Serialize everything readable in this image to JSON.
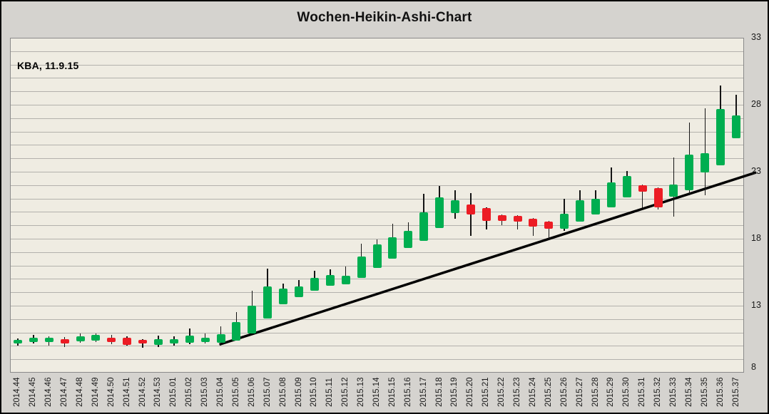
{
  "title": "Wochen-Heikin-Ashi-Chart",
  "annotation": "KBA, 11.9.15",
  "chart_data": {
    "type": "candlestick",
    "style": "heikin-ashi",
    "title": "Wochen-Heikin-Ashi-Chart",
    "grid": "horizontal-only",
    "legend_position": "none",
    "y_axis": {
      "side": "right",
      "min": 8,
      "max": 33,
      "grid_step": 1,
      "label_step": 5,
      "tick_labels": [
        "33",
        "28",
        "23",
        "18",
        "13",
        "8"
      ]
    },
    "x_axis": {
      "label_rotation_deg": 90,
      "categories": [
        "2014.44",
        "2014.45",
        "2014.46",
        "2014.47",
        "2014.48",
        "2014.49",
        "2014.50",
        "2014.51",
        "2014.52",
        "2014.53",
        "2015.01",
        "2015.02",
        "2015.03",
        "2015.04",
        "2015.05",
        "2015.06",
        "2015.07",
        "2015.08",
        "2015.09",
        "2015.10",
        "2015.11",
        "2015.12",
        "2015.13",
        "2015.14",
        "2015.15",
        "2015.16",
        "2015.17",
        "2015.18",
        "2015.19",
        "2015.20",
        "2015.21",
        "2015.22",
        "2015.23",
        "2015.24",
        "2015.25",
        "2015.26",
        "2015.27",
        "2015.28",
        "2015.29",
        "2015.30",
        "2015.31",
        "2015.32",
        "2015.33",
        "2015.34",
        "2015.35",
        "2015.36",
        "2015.37"
      ]
    },
    "candles": [
      {
        "week": "2014.44",
        "dir": "up",
        "open": 10.2,
        "close": 10.45,
        "high": 10.55,
        "low": 10.0
      },
      {
        "week": "2014.45",
        "dir": "up",
        "open": 10.3,
        "close": 10.6,
        "high": 10.8,
        "low": 10.2
      },
      {
        "week": "2014.46",
        "dir": "up",
        "open": 10.3,
        "close": 10.6,
        "high": 10.7,
        "low": 10.0
      },
      {
        "week": "2014.47",
        "dir": "down",
        "open": 10.5,
        "close": 10.2,
        "high": 10.65,
        "low": 9.9
      },
      {
        "week": "2014.48",
        "dir": "up",
        "open": 10.35,
        "close": 10.7,
        "high": 10.9,
        "low": 10.25
      },
      {
        "week": "2014.49",
        "dir": "up",
        "open": 10.4,
        "close": 10.8,
        "high": 10.9,
        "low": 10.3
      },
      {
        "week": "2014.50",
        "dir": "down",
        "open": 10.6,
        "close": 10.3,
        "high": 10.8,
        "low": 10.15
      },
      {
        "week": "2014.51",
        "dir": "down",
        "open": 10.6,
        "close": 10.1,
        "high": 10.7,
        "low": 10.0
      },
      {
        "week": "2014.52",
        "dir": "down",
        "open": 10.45,
        "close": 10.2,
        "high": 10.5,
        "low": 9.85
      },
      {
        "week": "2014.53",
        "dir": "up",
        "open": 10.1,
        "close": 10.5,
        "high": 10.75,
        "low": 9.9
      },
      {
        "week": "2015.01",
        "dir": "up",
        "open": 10.2,
        "close": 10.5,
        "high": 10.7,
        "low": 10.0
      },
      {
        "week": "2015.02",
        "dir": "up",
        "open": 10.25,
        "close": 10.75,
        "high": 11.3,
        "low": 10.15
      },
      {
        "week": "2015.03",
        "dir": "up",
        "open": 10.3,
        "close": 10.6,
        "high": 10.9,
        "low": 10.2
      },
      {
        "week": "2015.04",
        "dir": "up",
        "open": 10.25,
        "close": 10.85,
        "high": 11.45,
        "low": 10.15
      },
      {
        "week": "2015.05",
        "dir": "up",
        "open": 10.4,
        "close": 11.8,
        "high": 12.5,
        "low": 10.4
      },
      {
        "week": "2015.06",
        "dir": "up",
        "open": 10.95,
        "close": 13.0,
        "high": 14.1,
        "low": 10.95
      },
      {
        "week": "2015.07",
        "dir": "up",
        "open": 12.05,
        "close": 14.45,
        "high": 15.75,
        "low": 12.05
      },
      {
        "week": "2015.08",
        "dir": "up",
        "open": 13.1,
        "close": 14.3,
        "high": 14.65,
        "low": 13.1
      },
      {
        "week": "2015.09",
        "dir": "up",
        "open": 13.65,
        "close": 14.45,
        "high": 14.9,
        "low": 13.65
      },
      {
        "week": "2015.10",
        "dir": "up",
        "open": 14.1,
        "close": 15.05,
        "high": 15.6,
        "low": 14.1
      },
      {
        "week": "2015.11",
        "dir": "up",
        "open": 14.5,
        "close": 15.3,
        "high": 15.7,
        "low": 14.5
      },
      {
        "week": "2015.12",
        "dir": "up",
        "open": 14.6,
        "close": 15.25,
        "high": 15.95,
        "low": 14.6
      },
      {
        "week": "2015.13",
        "dir": "up",
        "open": 15.05,
        "close": 16.65,
        "high": 17.65,
        "low": 15.05
      },
      {
        "week": "2015.14",
        "dir": "up",
        "open": 15.8,
        "close": 17.55,
        "high": 17.95,
        "low": 15.8
      },
      {
        "week": "2015.15",
        "dir": "up",
        "open": 16.5,
        "close": 18.1,
        "high": 19.1,
        "low": 16.5
      },
      {
        "week": "2015.16",
        "dir": "up",
        "open": 17.3,
        "close": 18.6,
        "high": 19.2,
        "low": 17.3
      },
      {
        "week": "2015.17",
        "dir": "up",
        "open": 17.85,
        "close": 19.95,
        "high": 21.35,
        "low": 17.85
      },
      {
        "week": "2015.18",
        "dir": "up",
        "open": 18.8,
        "close": 21.1,
        "high": 21.95,
        "low": 18.8
      },
      {
        "week": "2015.19",
        "dir": "up",
        "open": 19.9,
        "close": 20.85,
        "high": 21.6,
        "low": 19.5
      },
      {
        "week": "2015.20",
        "dir": "down",
        "open": 20.55,
        "close": 19.8,
        "high": 21.4,
        "low": 18.2
      },
      {
        "week": "2015.21",
        "dir": "down",
        "open": 20.3,
        "close": 19.35,
        "high": 20.35,
        "low": 18.7
      },
      {
        "week": "2015.22",
        "dir": "down",
        "open": 19.75,
        "close": 19.35,
        "high": 19.8,
        "low": 19.0
      },
      {
        "week": "2015.23",
        "dir": "down",
        "open": 19.7,
        "close": 19.25,
        "high": 19.75,
        "low": 18.7
      },
      {
        "week": "2015.24",
        "dir": "down",
        "open": 19.5,
        "close": 18.9,
        "high": 19.55,
        "low": 18.2
      },
      {
        "week": "2015.25",
        "dir": "down",
        "open": 19.3,
        "close": 18.75,
        "high": 19.35,
        "low": 17.95
      },
      {
        "week": "2015.26",
        "dir": "up",
        "open": 18.75,
        "close": 19.85,
        "high": 21.0,
        "low": 18.6
      },
      {
        "week": "2015.27",
        "dir": "up",
        "open": 19.3,
        "close": 20.85,
        "high": 21.6,
        "low": 19.3
      },
      {
        "week": "2015.28",
        "dir": "up",
        "open": 19.8,
        "close": 21.0,
        "high": 21.6,
        "low": 19.8
      },
      {
        "week": "2015.29",
        "dir": "up",
        "open": 20.35,
        "close": 22.2,
        "high": 23.3,
        "low": 20.35
      },
      {
        "week": "2015.30",
        "dir": "up",
        "open": 21.1,
        "close": 22.7,
        "high": 23.05,
        "low": 21.1
      },
      {
        "week": "2015.31",
        "dir": "down",
        "open": 22.0,
        "close": 21.5,
        "high": 22.05,
        "low": 20.3
      },
      {
        "week": "2015.32",
        "dir": "down",
        "open": 21.8,
        "close": 20.35,
        "high": 21.85,
        "low": 20.2
      },
      {
        "week": "2015.33",
        "dir": "up",
        "open": 21.15,
        "close": 22.05,
        "high": 24.05,
        "low": 19.65
      },
      {
        "week": "2015.34",
        "dir": "up",
        "open": 21.6,
        "close": 24.3,
        "high": 26.65,
        "low": 21.25
      },
      {
        "week": "2015.35",
        "dir": "up",
        "open": 22.95,
        "close": 24.4,
        "high": 27.75,
        "low": 21.25
      },
      {
        "week": "2015.36",
        "dir": "up",
        "open": 23.5,
        "close": 27.7,
        "high": 29.45,
        "low": 23.5
      },
      {
        "week": "2015.37",
        "dir": "up",
        "open": 25.5,
        "close": 27.2,
        "high": 28.75,
        "low": 25.5
      }
    ],
    "trendline": {
      "start_week": "2015.04",
      "start_value": 10.1,
      "end_value": 22.95,
      "extends_past_right_axis": true
    },
    "colors": {
      "up": "#00ae50",
      "down": "#ec1c24",
      "wick": "#141414",
      "trendline": "#000000",
      "plot_background": "#efece2",
      "gridline": "#b3b1ac",
      "outer_background": "#d5d3cf"
    }
  }
}
